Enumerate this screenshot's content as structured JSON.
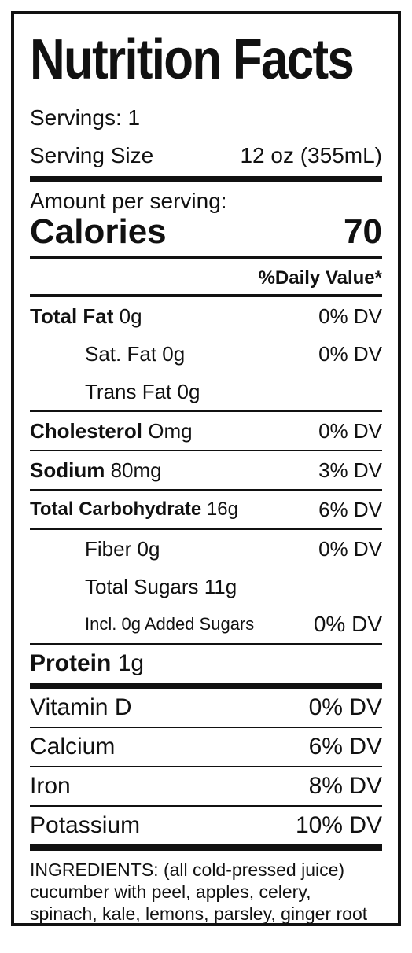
{
  "title": "Nutrition Facts",
  "servings": "Servings: 1",
  "serving_size": {
    "label": "Serving Size",
    "value": "12 oz (355mL)"
  },
  "amount_per_serving": "Amount per serving:",
  "calories": {
    "label": "Calories",
    "value": "70"
  },
  "daily_value_header": "%Daily Value*",
  "nutrients": [
    {
      "name": "Total Fat",
      "amount": "0g",
      "dv": "0% DV"
    },
    {
      "name": "Sat. Fat",
      "amount": "0g",
      "dv": "0% DV"
    },
    {
      "name": "Trans Fat",
      "amount": "0g",
      "dv": ""
    },
    {
      "name": "Cholesterol",
      "amount": "Omg",
      "dv": "0% DV"
    },
    {
      "name": "Sodium",
      "amount": "80mg",
      "dv": "3% DV"
    },
    {
      "name": "Total Carbohydrate",
      "amount": "16g",
      "dv": "6% DV"
    },
    {
      "name": "Fiber",
      "amount": "0g",
      "dv": "0% DV"
    },
    {
      "name": "Total Sugars",
      "amount": "11g",
      "dv": ""
    },
    {
      "name": "Incl. 0g Added Sugars",
      "amount": "",
      "dv": "0% DV"
    },
    {
      "name": "Protein",
      "amount": "1g",
      "dv": ""
    }
  ],
  "vitamins": [
    {
      "name": "Vitamin D",
      "dv": "0% DV"
    },
    {
      "name": "Calcium",
      "dv": "6% DV"
    },
    {
      "name": "Iron",
      "dv": "8% DV"
    },
    {
      "name": "Potassium",
      "dv": "10% DV"
    }
  ],
  "ingredients": "INGREDIENTS: (all cold-pressed juice) cucumber with peel, apples, celery, spinach, kale, lemons, parsley, ginger root"
}
